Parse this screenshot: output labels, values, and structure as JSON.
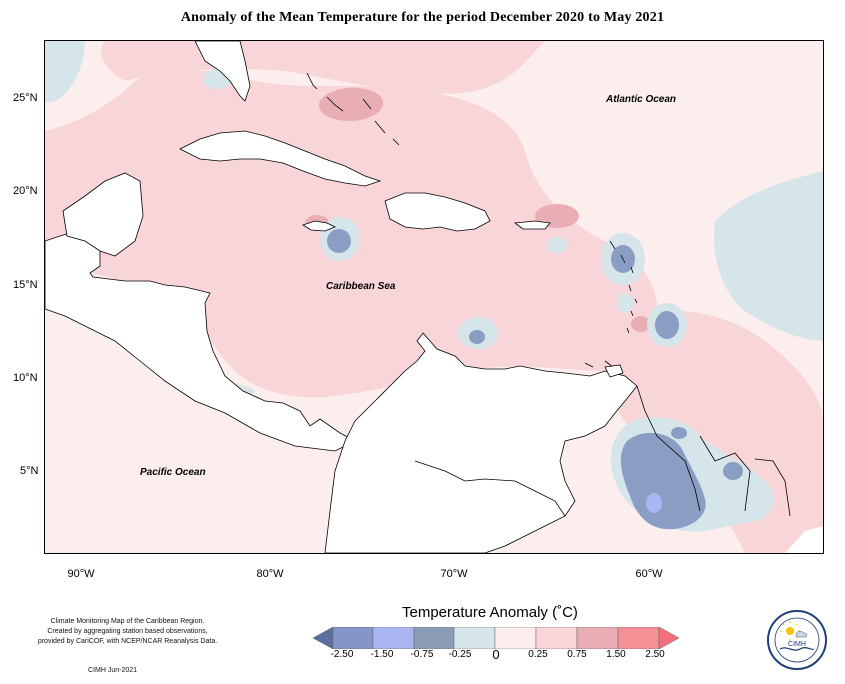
{
  "title": "Anomaly of the Mean Temperature for the period December 2020 to May 2021",
  "map": {
    "latitude_labels": [
      "25°N",
      "20°N",
      "15°N",
      "10°N",
      "5°N"
    ],
    "longitude_labels": [
      "90°W",
      "80°W",
      "70°W",
      "60°W"
    ],
    "ocean_labels": {
      "atlantic": "Atlantic Ocean",
      "caribbean": "Caribbean Sea",
      "pacific": "Pacific Ocean"
    },
    "colors": {
      "background_anomaly": "#fdeeee",
      "positive_anomaly": "#f8d5d9",
      "strong_positive_anomaly": "#e9aeb4",
      "slight_negative_anomaly": "#d5e5ea",
      "negative_anomaly": "#8a9ec4",
      "strong_negative_anomaly": "#6a7fb0",
      "land": "#ffffff"
    }
  },
  "legend": {
    "title": "Temperature Anomaly (˚C)",
    "tick_labels": [
      "-2.50",
      "-1.50",
      "-0.75",
      "-0.25",
      "0",
      "0.25",
      "0.75",
      "1.50",
      "2.50"
    ],
    "colors": [
      "#5b6f9e",
      "#8495c8",
      "#a9b6f2",
      "#8a9db4",
      "#d5e5ea",
      "#fdeeee",
      "#f8d5d9",
      "#e9aeb4",
      "#f39196",
      "#f46f7b"
    ]
  },
  "credit": {
    "lines": [
      "Climate Monitoring Map of the Caribbean Region.",
      "Created by aggregating station based observations,",
      "provided by CariCOF, with NCEP/NCAR Reanalysis Data."
    ],
    "date": "CIMH Jun-2021"
  },
  "logo": {
    "text": "CIMH",
    "icon": "sun-cloud-icon"
  }
}
